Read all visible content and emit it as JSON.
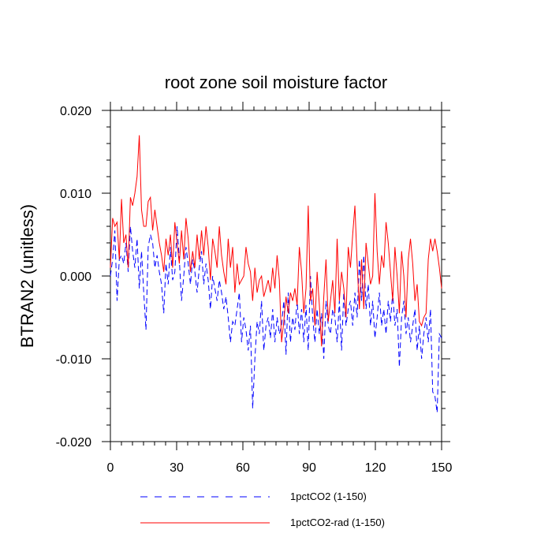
{
  "chart_data": {
    "type": "line",
    "title": "root zone soil moisture factor",
    "xlabel": "",
    "ylabel": "BTRAN2  (unitless)",
    "xlim": [
      0,
      150
    ],
    "ylim": [
      -0.02,
      0.02
    ],
    "xticks": [
      0,
      30,
      60,
      90,
      120,
      150
    ],
    "xtick_labels": [
      "0",
      "30",
      "60",
      "90",
      "120",
      "150"
    ],
    "yticks": [
      -0.02,
      -0.01,
      0.0,
      0.01,
      0.02
    ],
    "ytick_labels": [
      "-0.020",
      "-0.010",
      "0.000",
      "0.010",
      "0.020"
    ],
    "grid": false,
    "legend": "bottom",
    "series": [
      {
        "name": "1pctCO2 (1-150)",
        "color": "#0000ff",
        "style": "dashed",
        "values": [
          0.0,
          0.002,
          0.0055,
          -0.003,
          0.002,
          0.0025,
          0.0015,
          0.004,
          0.0005,
          0.006,
          0.003,
          0.001,
          0.0045,
          -0.0015,
          0.003,
          -0.002,
          -0.0065,
          0.0035,
          0.005,
          0.004,
          0.001,
          0.0025,
          0.0005,
          -0.001,
          -0.0045,
          0.0015,
          -0.001,
          0.0035,
          -0.0005,
          0.0005,
          0.006,
          0.002,
          -0.003,
          0.0,
          0.0035,
          0.0015,
          -0.001,
          0.002,
          0.0005,
          -0.002,
          0.001,
          0.003,
          -0.001,
          0.0015,
          -0.0005,
          -0.004,
          0.0,
          -0.0015,
          -0.003,
          -0.0005,
          -0.002,
          -0.004,
          -0.0025,
          -0.005,
          -0.008,
          -0.0055,
          -0.006,
          -0.004,
          -0.002,
          -0.008,
          -0.005,
          -0.0065,
          -0.009,
          -0.006,
          -0.016,
          -0.01,
          -0.0055,
          -0.007,
          -0.003,
          -0.009,
          -0.006,
          -0.005,
          -0.0075,
          -0.004,
          -0.008,
          -0.005,
          -0.007,
          -0.006,
          -0.003,
          -0.0095,
          -0.002,
          -0.008,
          -0.005,
          -0.0065,
          -0.003,
          -0.007,
          -0.004,
          -0.008,
          -0.0035,
          -0.009,
          0.0,
          -0.005,
          -0.008,
          -0.004,
          -0.007,
          -0.0045,
          -0.01,
          -0.003,
          -0.006,
          -0.007,
          -0.004,
          -0.005,
          -0.008,
          -0.003,
          -0.009,
          -0.002,
          -0.006,
          -0.004,
          -0.003,
          -0.006,
          -0.002,
          -0.005,
          0.002,
          -0.003,
          0.0025,
          -0.004,
          -0.001,
          -0.006,
          -0.003,
          -0.0075,
          -0.005,
          -0.002,
          -0.006,
          -0.004,
          -0.007,
          -0.003,
          -0.0055,
          -0.002,
          -0.006,
          -0.004,
          -0.011,
          -0.005,
          -0.003,
          -0.007,
          -0.005,
          -0.008,
          -0.006,
          -0.004,
          -0.009,
          -0.006,
          -0.01,
          -0.007,
          -0.005,
          -0.008,
          -0.004,
          -0.014,
          -0.0145,
          -0.0165,
          -0.007,
          -0.0075
        ]
      },
      {
        "name": "1pctCO2-rad (1-150)",
        "color": "#ff0000",
        "style": "solid",
        "values": [
          0.001,
          0.007,
          0.006,
          0.0065,
          0.002,
          0.0093,
          0.004,
          0.005,
          0.001,
          0.0095,
          0.0085,
          0.01,
          0.012,
          0.017,
          0.008,
          0.006,
          0.006,
          0.009,
          0.0095,
          0.0055,
          0.008,
          0.006,
          0.004,
          0.0025,
          0.0005,
          0.0045,
          0.0025,
          0.005,
          0.001,
          0.0065,
          0.004,
          0.0015,
          0.0055,
          0.002,
          0.007,
          0.0045,
          0.0005,
          0.003,
          0.001,
          0.005,
          0.002,
          0.0055,
          0.0025,
          0.006,
          0.0035,
          -0.0005,
          0.0045,
          0.003,
          0.001,
          0.006,
          0.0025,
          0.0005,
          -0.001,
          0.0045,
          0.001,
          0.0035,
          -0.002,
          0.0015,
          -0.001,
          -0.0005,
          0.0,
          0.0035,
          0.0015,
          0.0005,
          -0.003,
          0.001,
          -0.002,
          -0.0005,
          0.0,
          -0.0025,
          -0.0015,
          -0.0005,
          -0.002,
          0.001,
          -0.0015,
          0.0025,
          -0.0005,
          -0.008,
          -0.0055,
          -0.0025,
          -0.0045,
          -0.002,
          -0.003,
          -0.0015,
          -0.0035,
          0.0035,
          0.0005,
          -0.0045,
          -0.0015,
          0.0085,
          -0.003,
          -0.0015,
          -0.006,
          0.0005,
          -0.0035,
          -0.0085,
          -0.0025,
          0.002,
          -0.0055,
          -0.003,
          -0.0005,
          -0.0045,
          0.0045,
          -0.003,
          0.0005,
          -0.0015,
          -0.005,
          0.0035,
          0.001,
          0.005,
          0.0085,
          0.0015,
          -0.004,
          0.002,
          -0.004,
          0.004,
          0.0015,
          -0.001,
          0.0,
          0.01,
          0.003,
          -0.001,
          0.0025,
          0.001,
          0.0065,
          0.004,
          0.0005,
          -0.003,
          0.0035,
          0.0,
          -0.0045,
          0.003,
          0.0,
          -0.005,
          0.002,
          0.0045,
          0.0015,
          -0.003,
          -0.001,
          -0.0055,
          -0.006,
          -0.005,
          -0.0045,
          0.002,
          0.0045,
          0.003,
          0.0045,
          0.003,
          0.001,
          -0.0015
        ]
      }
    ]
  }
}
